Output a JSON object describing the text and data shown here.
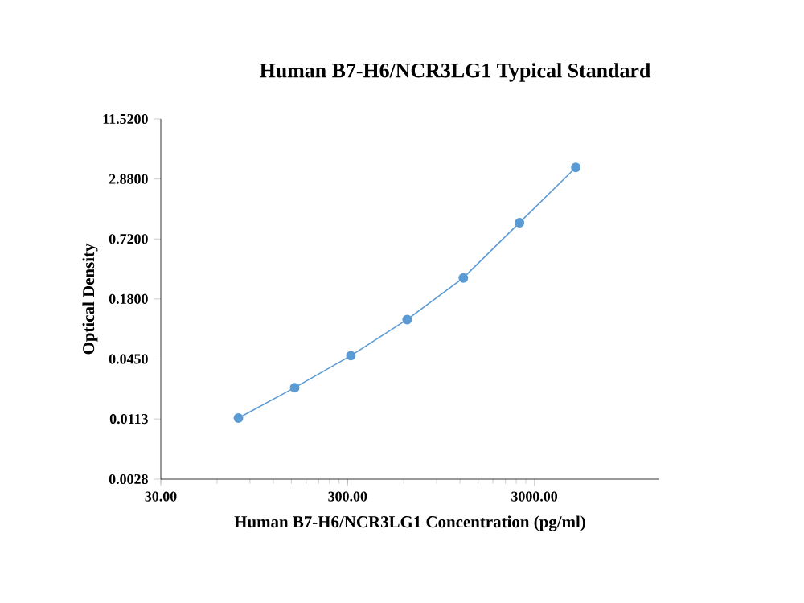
{
  "chart_data": {
    "type": "line",
    "title": "Human B7-H6/NCR3LG1 Typical Standard",
    "xlabel": "Human B7-H6/NCR3LG1 Concentration (pg/ml)",
    "ylabel": "Optical Density",
    "x": [
      78.125,
      156.25,
      312.5,
      625,
      1250,
      2500,
      5000
    ],
    "series": [
      {
        "color": "#5b9bd5",
        "values": [
          0.0115,
          0.0232,
          0.0486,
          0.112,
          0.293,
          1.05,
          3.76
        ]
      }
    ],
    "log": "xy",
    "marker": "circle",
    "line_style": "solid",
    "grid": false,
    "xlim": [
      30,
      14000
    ],
    "xticks": [
      {
        "value": 30,
        "label": "30.00"
      },
      {
        "value": 300,
        "label": "300.00"
      },
      {
        "value": 3000,
        "label": "3000.00"
      }
    ],
    "ylim": [
      0.0028,
      11.52
    ],
    "yticks": [
      {
        "value": 0.0028,
        "label": "0.0028"
      },
      {
        "value": 0.01125,
        "label": "0.0113"
      },
      {
        "value": 0.045,
        "label": "0.0450"
      },
      {
        "value": 0.18,
        "label": "0.1800"
      },
      {
        "value": 0.72,
        "label": "0.7200"
      },
      {
        "value": 2.88,
        "label": "2.8800"
      },
      {
        "value": 11.52,
        "label": "11.5200"
      }
    ]
  }
}
